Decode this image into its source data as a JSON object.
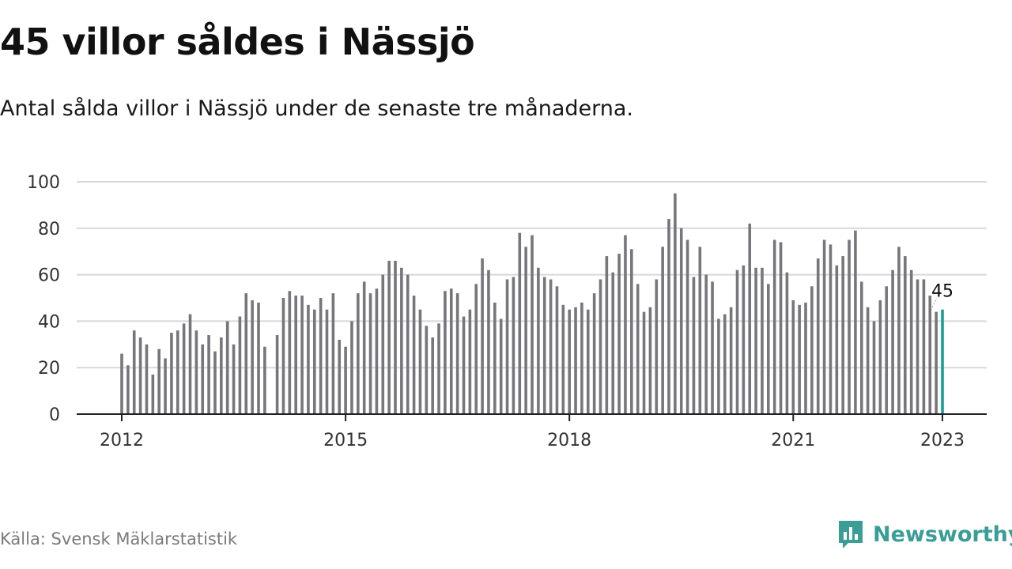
{
  "header": {
    "title": "45 villor såldes i Nässjö",
    "subtitle": "Antal sålda villor i Nässjö under de senaste tre månaderna."
  },
  "footer": {
    "source": "Källa: Svensk Mäklarstatistik",
    "brand": "Newsworthy",
    "brand_icon": "bar-chart-logo-icon"
  },
  "colors": {
    "bar": "#76767b",
    "highlight": "#1a9e96",
    "grid": "#d8d8d8",
    "axis": "#222222",
    "brand": "#3a9e97"
  },
  "chart_data": {
    "type": "bar",
    "title": "45 villor såldes i Nässjö",
    "subtitle": "Antal sålda villor i Nässjö under de senaste tre månaderna.",
    "xlabel": "",
    "ylabel": "",
    "ylim": [
      0,
      100
    ],
    "yticks": [
      0,
      20,
      40,
      60,
      80,
      100
    ],
    "xticks": [
      "2012",
      "2015",
      "2018",
      "2021",
      "2023"
    ],
    "grid": true,
    "legend": "none",
    "start": "2012-01",
    "end": "2023-01",
    "values": [
      26,
      21,
      36,
      33,
      30,
      17,
      28,
      24,
      35,
      36,
      39,
      43,
      36,
      30,
      34,
      27,
      33,
      40,
      30,
      42,
      52,
      49,
      48,
      29,
      null,
      34,
      50,
      53,
      51,
      51,
      47,
      45,
      50,
      45,
      52,
      32,
      29,
      40,
      52,
      57,
      52,
      54,
      60,
      66,
      66,
      63,
      60,
      51,
      45,
      38,
      33,
      39,
      53,
      54,
      52,
      42,
      45,
      56,
      67,
      62,
      48,
      41,
      58,
      59,
      78,
      72,
      77,
      63,
      59,
      58,
      55,
      47,
      45,
      46,
      48,
      45,
      52,
      58,
      68,
      61,
      69,
      77,
      71,
      56,
      44,
      46,
      58,
      72,
      84,
      95,
      80,
      75,
      59,
      72,
      60,
      57,
      41,
      43,
      46,
      62,
      64,
      82,
      63,
      63,
      56,
      75,
      74,
      61,
      49,
      47,
      48,
      55,
      67,
      75,
      73,
      64,
      68,
      75,
      79,
      57,
      46,
      40,
      49,
      55,
      62,
      72,
      68,
      62,
      58,
      58,
      51,
      44,
      45
    ],
    "highlight_last": {
      "label": "45",
      "value": 45
    }
  }
}
